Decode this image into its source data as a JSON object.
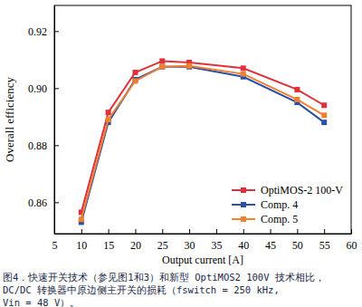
{
  "chart_data": {
    "type": "line",
    "x_label": "Output current [A]",
    "y_label": "Overall efficiency",
    "caption": [
      "图4．快速开关技术（参见图1和3）和新型 OptiMOS2 100V 技术相比，",
      "DC/DC 转换器中原边侧主开关的损耗（fswitch = 250 kHz,",
      "Vin = 48 V）。"
    ],
    "x": [
      10,
      15,
      20,
      25,
      30,
      40,
      50,
      55
    ],
    "series": [
      {
        "name": "OptiMOS-2 100-V",
        "color": "#e0303a",
        "marker": "square",
        "values": [
          0.8565,
          0.8915,
          0.9055,
          0.9095,
          0.909,
          0.907,
          0.8995,
          0.894
        ]
      },
      {
        "name": "Comp. 4",
        "color": "#2a4fa8",
        "marker": "square",
        "values": [
          0.853,
          0.888,
          0.903,
          0.9075,
          0.9075,
          0.904,
          0.895,
          0.888
        ]
      },
      {
        "name": "Comp. 5",
        "color": "#f08030",
        "marker": "square",
        "values": [
          0.854,
          0.889,
          0.9025,
          0.9075,
          0.9078,
          0.905,
          0.896,
          0.8905
        ]
      }
    ],
    "xlim": [
      5,
      60
    ],
    "xticks": [
      5,
      10,
      15,
      20,
      25,
      30,
      35,
      40,
      45,
      50,
      55,
      60
    ],
    "ylim": [
      0.849,
      0.929
    ],
    "yticks": [
      {
        "value": 0.86,
        "label": "0.86"
      },
      {
        "value": 0.88,
        "label": "0.88"
      },
      {
        "value": 0.9,
        "label": "0.90"
      },
      {
        "value": 0.92,
        "label": "0.92"
      }
    ],
    "legend": "lower right",
    "grid": false
  }
}
